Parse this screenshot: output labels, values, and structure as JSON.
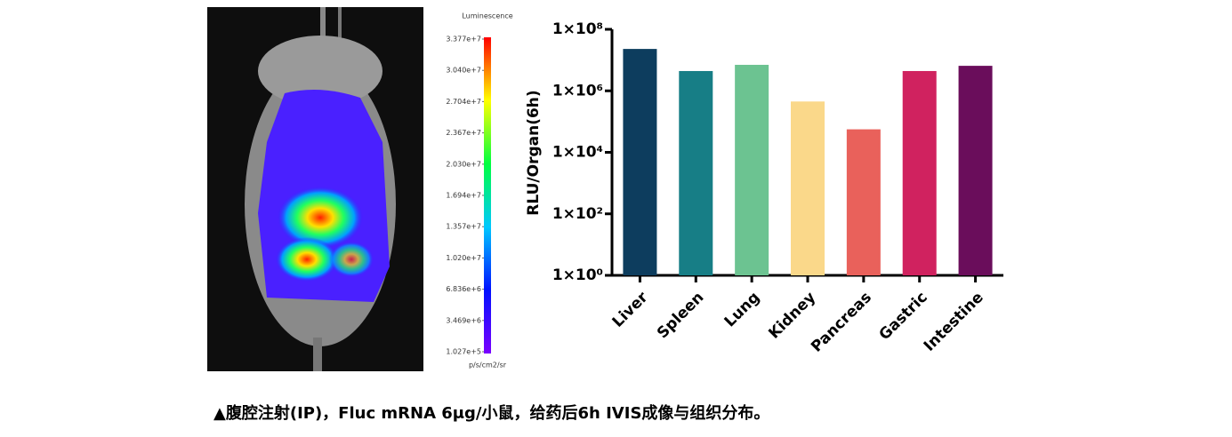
{
  "chart_data": [
    {
      "type": "colorbar",
      "title": "Luminescence",
      "unit": "p/s/cm2/sr",
      "clim": [
        102700,
        33770000
      ],
      "colors": [
        "#7a00ff",
        "#0010ff",
        "#00c8ff",
        "#00ff40",
        "#ffff00",
        "#ff0000"
      ],
      "ticks": [
        {
          "value": 33770000,
          "label": "3.377e+7"
        },
        {
          "value": 30400000,
          "label": "3.040e+7"
        },
        {
          "value": 27040000,
          "label": "2.704e+7"
        },
        {
          "value": 23670000,
          "label": "2.367e+7"
        },
        {
          "value": 20300000,
          "label": "2.030e+7"
        },
        {
          "value": 16940000,
          "label": "1.694e+7"
        },
        {
          "value": 13570000,
          "label": "1.357e+7"
        },
        {
          "value": 10200000,
          "label": "1.020e+7"
        },
        {
          "value": 6836000,
          "label": "6.836e+6"
        },
        {
          "value": 3469000,
          "label": "3.469e+6"
        },
        {
          "value": 102700,
          "label": "1.027e+5"
        }
      ]
    },
    {
      "type": "bar",
      "ylabel": "RLU/Organ(6h)",
      "log": true,
      "categories": [
        "Liver",
        "Spleen",
        "Lung",
        "Kidney",
        "Pancreas",
        "Gastric",
        "Intestine"
      ],
      "values": [
        23000000,
        4400000,
        7000000,
        450000,
        56000,
        4400000,
        6500000
      ],
      "colors": [
        "#0d3d5e",
        "#177e86",
        "#6cc391",
        "#fad88a",
        "#e9615b",
        "#d0225f",
        "#6a0d5b"
      ],
      "ylim": [
        1,
        100000000
      ],
      "yticks": [
        {
          "value": 1,
          "label": "1×10⁰"
        },
        {
          "value": 100,
          "label": "1×10²"
        },
        {
          "value": 10000,
          "label": "1×10⁴"
        },
        {
          "value": 1000000,
          "label": "1×10⁶"
        },
        {
          "value": 100000000,
          "label": "1×10⁸"
        }
      ]
    }
  ],
  "caption": "▲腹腔注射(IP)，Fluc mRNA 6μg/小鼠，给药后6h IVIS成像与组织分布。"
}
